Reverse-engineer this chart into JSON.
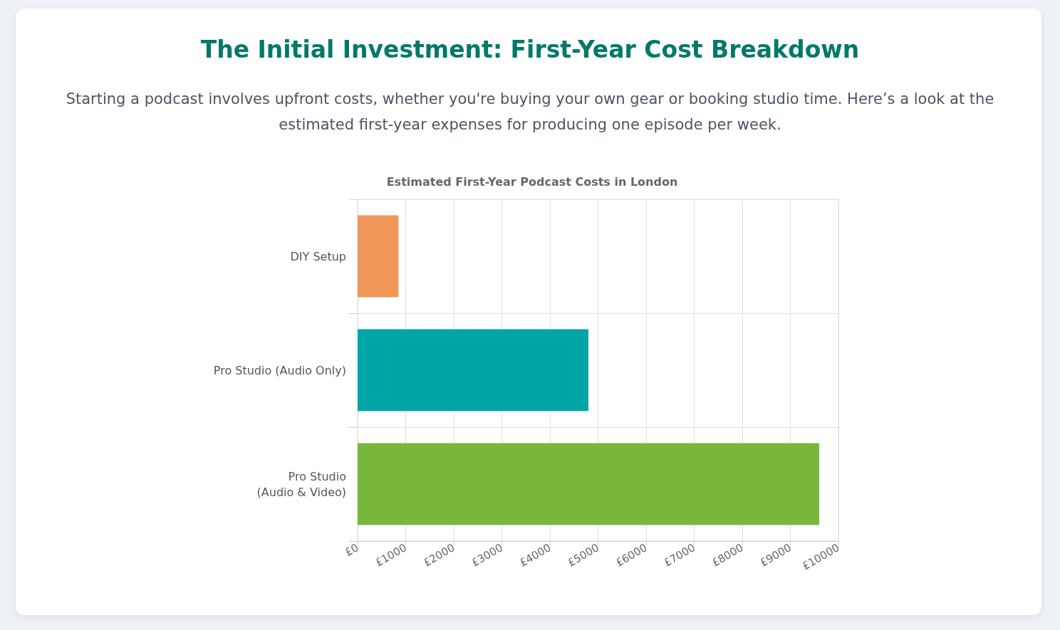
{
  "chart_data": {
    "type": "bar",
    "orientation": "horizontal",
    "title": "The Initial Investment: First-Year Cost Breakdown",
    "subtitle": "Starting a podcast involves upfront costs, whether you're buying your own gear or booking studio time. Here’s a look at the estimated first-year expenses for producing one episode per week.",
    "annotations": [
      "Estimated First-Year Podcast Costs in London"
    ],
    "categories": [
      "DIY Setup",
      "Pro Studio (Audio Only)",
      "Pro Studio\n(Audio & Video)"
    ],
    "values": [
      850,
      4800,
      9600
    ],
    "colors": [
      "#f2975a",
      "#00a5a5",
      "#78b73c"
    ],
    "xlim": [
      0,
      10000
    ],
    "xticks": [
      {
        "value": 0,
        "label": "£0"
      },
      {
        "value": 1000,
        "label": "£1000"
      },
      {
        "value": 2000,
        "label": "£2000"
      },
      {
        "value": 3000,
        "label": "£3000"
      },
      {
        "value": 4000,
        "label": "£4000"
      },
      {
        "value": 5000,
        "label": "£5000"
      },
      {
        "value": 6000,
        "label": "£6000"
      },
      {
        "value": 7000,
        "label": "£7000"
      },
      {
        "value": 8000,
        "label": "£8000"
      },
      {
        "value": 9000,
        "label": "£9000"
      },
      {
        "value": 10000,
        "label": "£10000"
      }
    ],
    "grid": true
  }
}
